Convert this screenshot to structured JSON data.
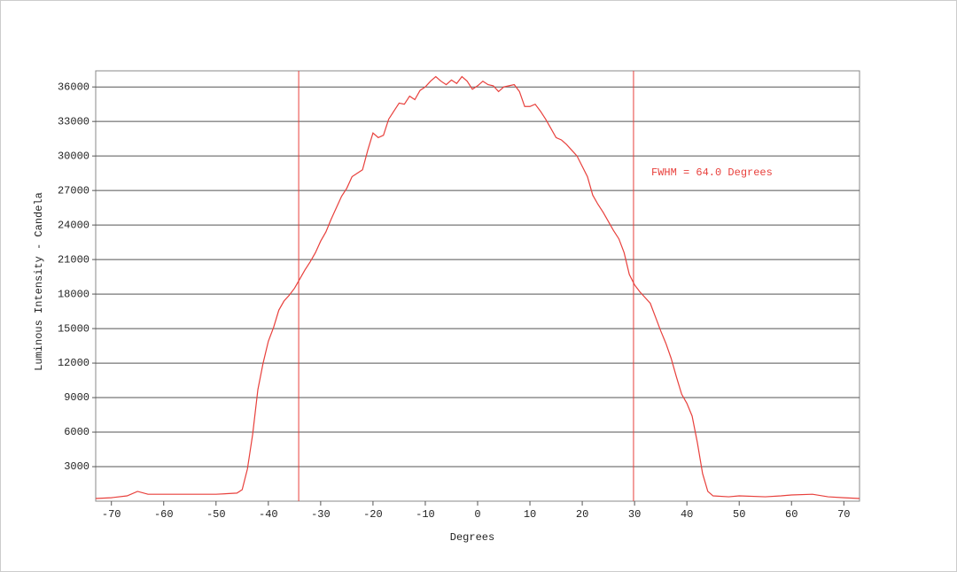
{
  "chart_data": {
    "type": "line",
    "xlabel": "Degrees",
    "ylabel": "Luminous Intensity - Candela",
    "annotation": "FWHM = 64.0 Degrees",
    "fwhm_lines": [
      -34.2,
      29.8
    ],
    "x": [
      -73,
      -70,
      -67,
      -65,
      -63,
      -60,
      -50,
      -46,
      -45,
      -44,
      -43,
      -42,
      -41,
      -40,
      -39,
      -38,
      -37,
      -36,
      -35,
      -34,
      -33,
      -32,
      -31,
      -30,
      -29,
      -28,
      -27,
      -26,
      -25,
      -24,
      -23,
      -22,
      -21,
      -20,
      -19,
      -18,
      -17,
      -16,
      -15,
      -14,
      -13,
      -12,
      -11,
      -10,
      -9,
      -8,
      -7,
      -6,
      -5,
      -4,
      -3,
      -2,
      -1,
      0,
      1,
      2,
      3,
      4,
      5,
      6,
      7,
      8,
      9,
      10,
      11,
      12,
      13,
      14,
      15,
      16,
      17,
      18,
      19,
      20,
      21,
      22,
      23,
      24,
      25,
      26,
      27,
      28,
      29,
      30,
      31,
      32,
      33,
      34,
      35,
      36,
      37,
      38,
      39,
      40,
      41,
      42,
      43,
      44,
      45,
      48,
      50,
      55,
      58,
      60,
      64,
      67,
      70,
      73
    ],
    "series": [
      {
        "color": "#e8403c",
        "values": [
          230,
          300,
          460,
          850,
          600,
          600,
          600,
          700,
          1000,
          2800,
          5800,
          9700,
          12000,
          13900,
          15100,
          16600,
          17400,
          17900,
          18500,
          19300,
          20100,
          20800,
          21600,
          22600,
          23400,
          24500,
          25500,
          26500,
          27200,
          28200,
          28500,
          28800,
          30500,
          32000,
          31600,
          31800,
          33200,
          33900,
          34600,
          34500,
          35200,
          34900,
          35700,
          36000,
          36500,
          36900,
          36500,
          36200,
          36600,
          36300,
          36900,
          36500,
          35800,
          36100,
          36500,
          36200,
          36100,
          35600,
          36000,
          36100,
          36200,
          35600,
          34300,
          34300,
          34500,
          33900,
          33200,
          32400,
          31600,
          31400,
          31000,
          30500,
          30000,
          29100,
          28200,
          26600,
          25800,
          25100,
          24300,
          23500,
          22800,
          21600,
          19700,
          18800,
          18200,
          17700,
          17200,
          16000,
          14800,
          13700,
          12400,
          10800,
          9300,
          8500,
          7400,
          5100,
          2400,
          850,
          460,
          380,
          460,
          380,
          460,
          540,
          600,
          380,
          300,
          230
        ]
      }
    ],
    "xlim": [
      -73,
      73
    ],
    "ylim": [
      0,
      37400
    ],
    "xticks": [
      -70,
      -60,
      -50,
      -40,
      -30,
      -20,
      -10,
      0,
      10,
      20,
      30,
      40,
      50,
      60,
      70
    ],
    "yticks": [
      3000,
      6000,
      9000,
      12000,
      15000,
      18000,
      21000,
      24000,
      27000,
      30000,
      33000,
      36000
    ],
    "grid": true
  }
}
